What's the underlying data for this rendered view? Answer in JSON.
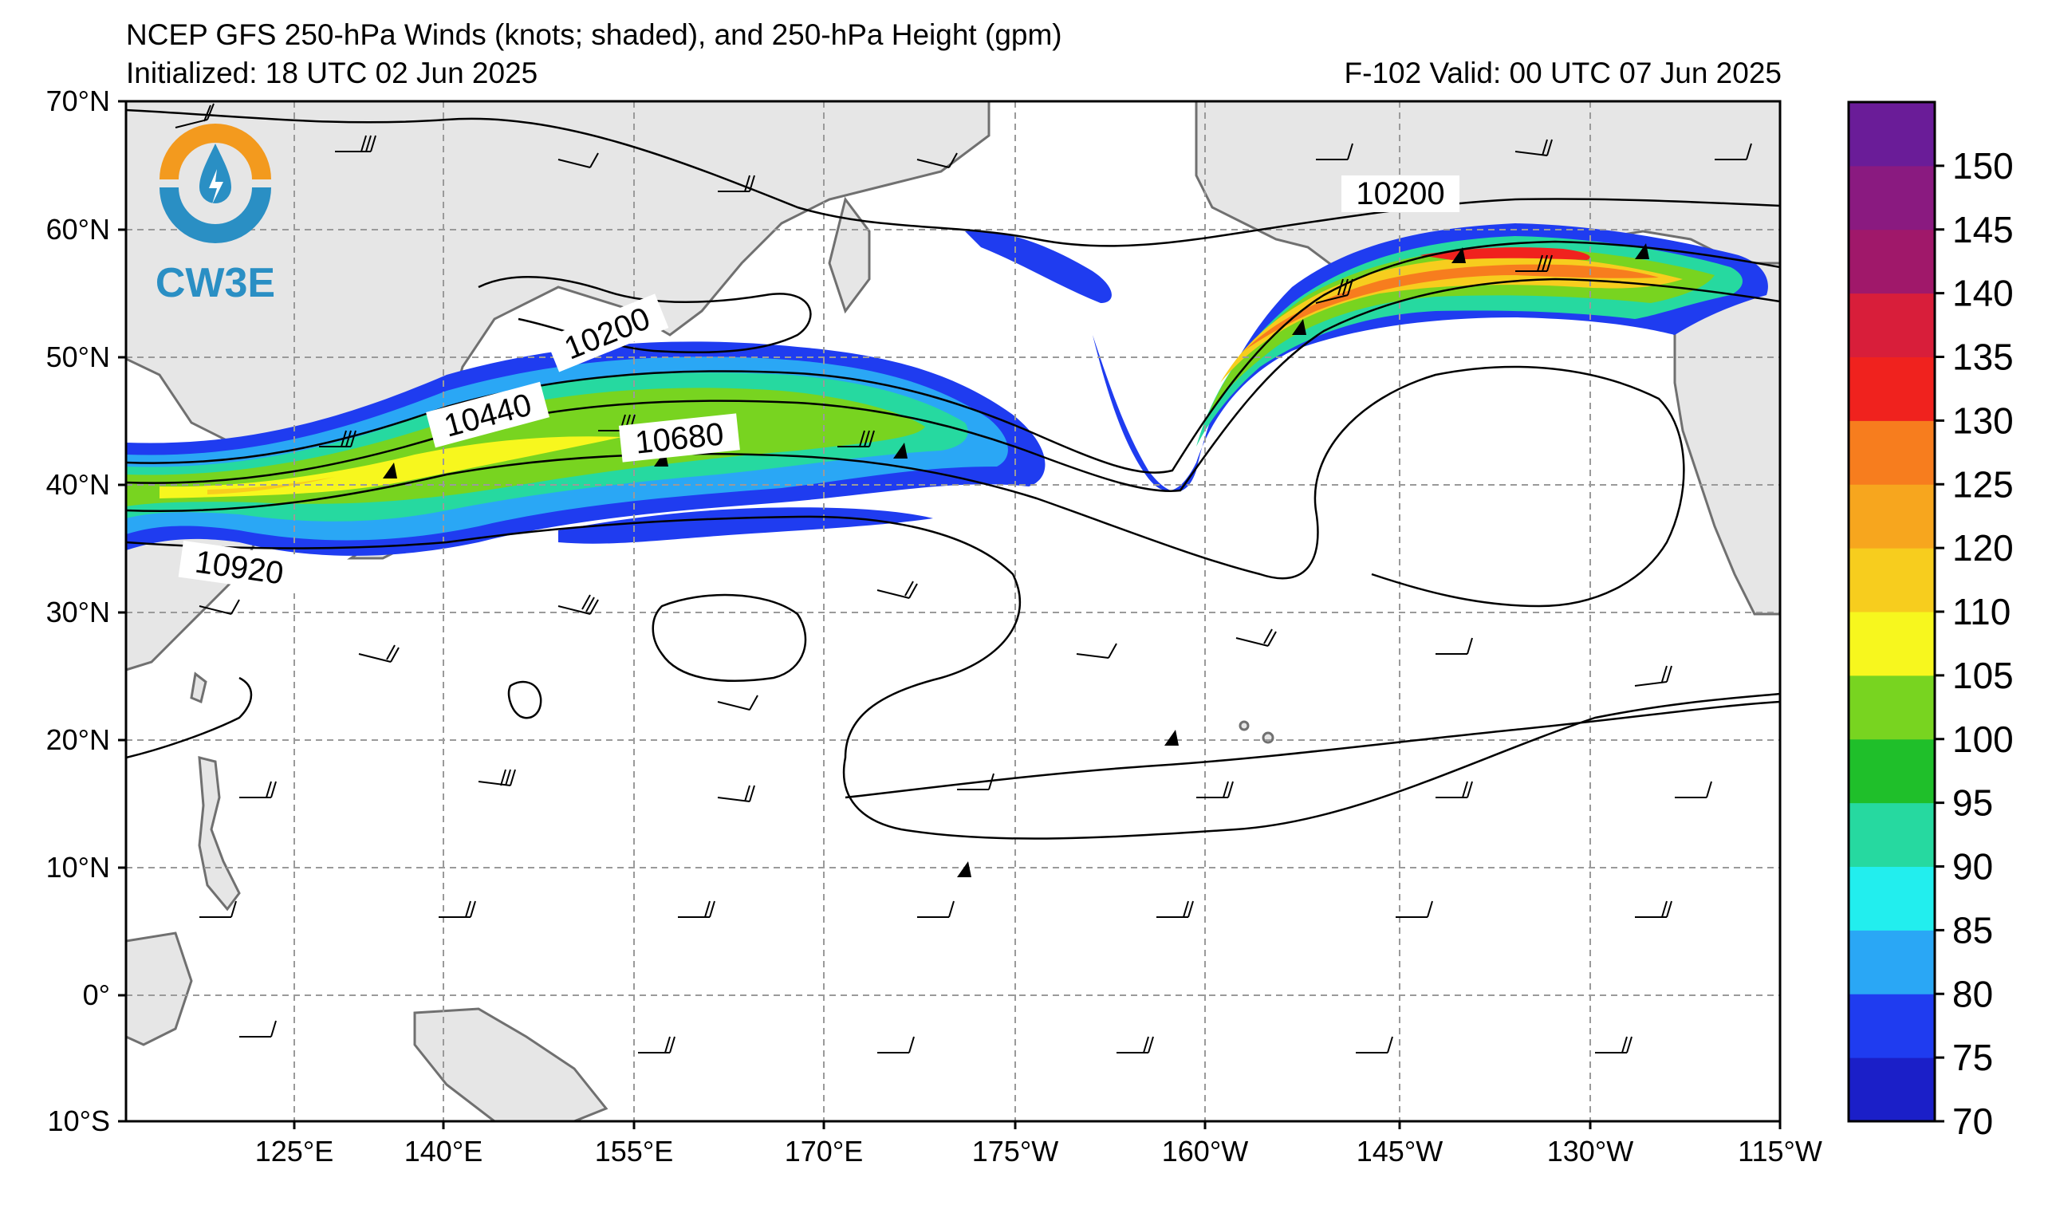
{
  "header": {
    "title": "NCEP GFS 250-hPa Winds (knots; shaded), and 250-hPa Height (gpm)",
    "initialized": "Initialized: 18 UTC 02 Jun 2025",
    "valid": "F-102  Valid: 00 UTC 07 Jun 2025"
  },
  "logo": {
    "text": "CW3E",
    "colors": {
      "orange": "#f39a1e",
      "blue": "#2a8fc4"
    }
  },
  "map": {
    "lat_labels": [
      "70°N",
      "60°N",
      "50°N",
      "40°N",
      "30°N",
      "20°N",
      "10°N",
      "0°",
      "10°S"
    ],
    "lon_labels": [
      "125°E",
      "140°E",
      "155°E",
      "170°E",
      "175°W",
      "160°W",
      "145°W",
      "130°W",
      "115°W"
    ],
    "contour_labels": [
      "10200",
      "10440",
      "10680",
      "10920",
      "10200"
    ],
    "land_color": "#e6e6e6",
    "coast_color": "#707070"
  },
  "colorbar": {
    "ticks": [
      "150",
      "145",
      "140",
      "135",
      "130",
      "125",
      "120",
      "110",
      "105",
      "100",
      "95",
      "90",
      "85",
      "80",
      "75",
      "70"
    ],
    "colors": [
      "#1b1fc8",
      "#1f3cf0",
      "#2aa7f5",
      "#22eeee",
      "#26d9a0",
      "#1fbf2a",
      "#78d420",
      "#f7f71e",
      "#f7cd1e",
      "#f7a61e",
      "#f77d1e",
      "#f0221e",
      "#d81e3a",
      "#a0186a",
      "#8a1a80",
      "#6a1c98"
    ]
  }
}
